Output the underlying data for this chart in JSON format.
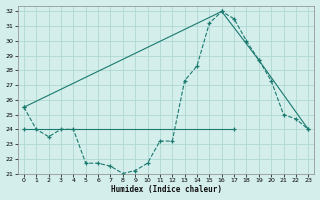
{
  "xlabel": "Humidex (Indice chaleur)",
  "background_color": "#d4eeec",
  "grid_color": "#b0d8d4",
  "line_color": "#1a7a6e",
  "xlim": [
    -0.5,
    23.5
  ],
  "ylim": [
    21,
    32.4
  ],
  "xticks": [
    0,
    1,
    2,
    3,
    4,
    5,
    6,
    7,
    8,
    9,
    10,
    11,
    12,
    13,
    14,
    15,
    16,
    17,
    18,
    19,
    20,
    21,
    22,
    23
  ],
  "yticks": [
    21,
    22,
    23,
    24,
    25,
    26,
    27,
    28,
    29,
    30,
    31,
    32
  ],
  "series1_x": [
    0,
    1,
    2,
    3,
    4,
    5,
    6,
    7,
    8,
    9,
    10,
    11,
    12,
    13,
    14,
    15,
    16,
    17,
    18,
    19,
    20,
    21,
    22,
    23
  ],
  "series1_y": [
    25.5,
    24.0,
    23.5,
    24.0,
    24.0,
    21.7,
    21.7,
    21.5,
    21.0,
    21.2,
    21.7,
    23.2,
    23.2,
    27.3,
    28.3,
    31.2,
    32.0,
    31.5,
    30.0,
    28.7,
    27.3,
    25.0,
    24.7,
    24.0
  ],
  "series2_x": [
    0,
    16,
    19,
    23
  ],
  "series2_y": [
    25.5,
    32.0,
    28.7,
    24.0
  ],
  "series3_x": [
    0,
    17
  ],
  "series3_y": [
    24.0,
    24.0
  ]
}
